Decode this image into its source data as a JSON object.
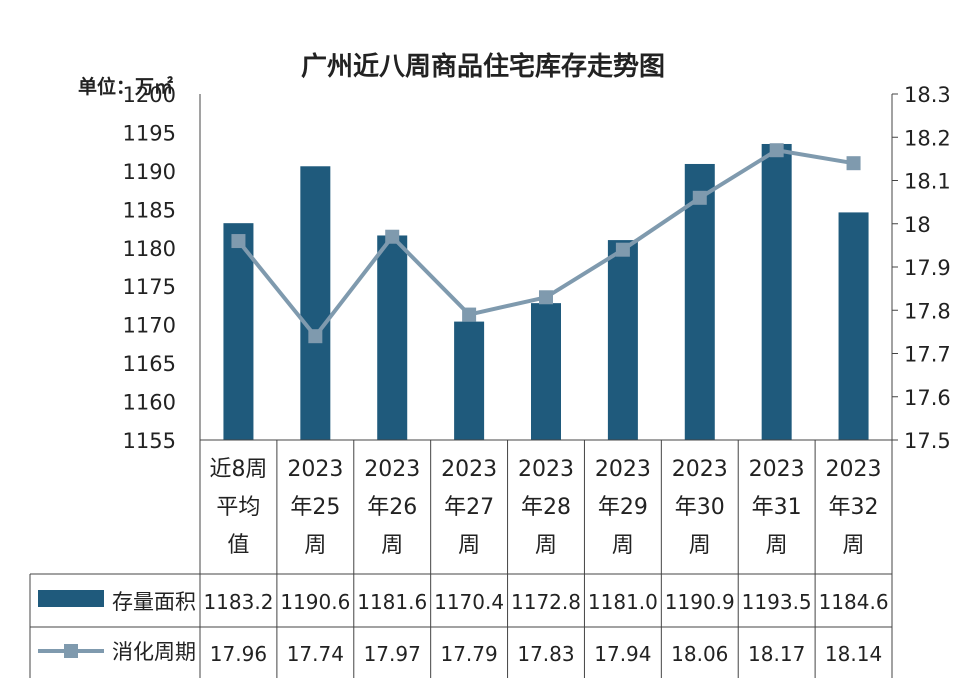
{
  "chart_data": {
    "type": "bar",
    "title": "广州近八周商品住宅库存走势图",
    "unit_label": "单位：万㎡",
    "categories": [
      [
        "近8周",
        "平均",
        "值"
      ],
      [
        "2023",
        "年25",
        "周"
      ],
      [
        "2023",
        "年26",
        "周"
      ],
      [
        "2023",
        "年27",
        "周"
      ],
      [
        "2023",
        "年28",
        "周"
      ],
      [
        "2023",
        "年29",
        "周"
      ],
      [
        "2023",
        "年30",
        "周"
      ],
      [
        "2023",
        "年31",
        "周"
      ],
      [
        "2023",
        "年32",
        "周"
      ]
    ],
    "series": [
      {
        "name": "存量面积",
        "type": "bar",
        "axis": "left",
        "color": "#1f5a7c",
        "values": [
          1183.2,
          1190.6,
          1181.6,
          1170.4,
          1172.8,
          1181.0,
          1190.9,
          1193.5,
          1184.6
        ],
        "labels": [
          "1183.2",
          "1190.6",
          "1181.6",
          "1170.4",
          "1172.8",
          "1181.0",
          "1190.9",
          "1193.5",
          "1184.6"
        ]
      },
      {
        "name": "消化周期",
        "type": "line",
        "axis": "right",
        "color": "#7f9aae",
        "values": [
          17.96,
          17.74,
          17.97,
          17.79,
          17.83,
          17.94,
          18.06,
          18.17,
          18.14
        ],
        "labels": [
          "17.96",
          "17.74",
          "17.97",
          "17.79",
          "17.83",
          "17.94",
          "18.06",
          "18.17",
          "18.14"
        ]
      }
    ],
    "ylim_left": [
      1155,
      1200
    ],
    "yticks_left": [
      "1155",
      "1160",
      "1165",
      "1170",
      "1175",
      "1180",
      "1185",
      "1190",
      "1195",
      "1200"
    ],
    "ylim_right": [
      17.5,
      18.3
    ],
    "yticks_right": [
      "17.5",
      "17.6",
      "17.7",
      "17.8",
      "17.9",
      "18",
      "18.1",
      "18.2",
      "18.3"
    ],
    "grid": false,
    "legend": "data-table"
  }
}
